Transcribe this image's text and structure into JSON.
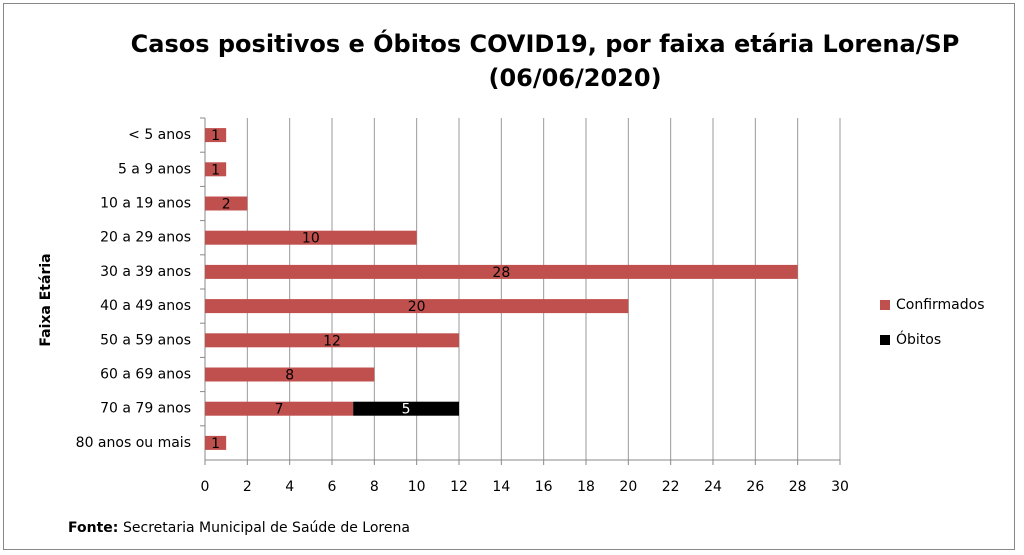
{
  "chart_data": {
    "type": "stacked-bar-horizontal",
    "title": [
      "Casos positivos e Óbitos COVID19, por faixa etária Lorena/SP",
      "(06/06/2020)"
    ],
    "ylabel": "Faixa Etária",
    "categories": [
      "< 5 anos",
      "5 a 9 anos",
      "10 a 19 anos",
      "20 a 29 anos",
      "30 a 39 anos",
      "40 a 49 anos",
      "50 a 59 anos",
      "60 a 69 anos",
      "70 a 79 anos",
      "80 anos ou mais"
    ],
    "series": [
      {
        "name": "Confirmados",
        "color": "#c0504d",
        "label_color": "#000000",
        "values": [
          1,
          1,
          2,
          10,
          28,
          20,
          12,
          8,
          7,
          1
        ]
      },
      {
        "name": "Óbitos",
        "color": "#000000",
        "label_color": "#ffffff",
        "values": [
          null,
          null,
          null,
          null,
          null,
          null,
          null,
          null,
          5,
          null
        ]
      }
    ],
    "xlim": [
      0,
      30
    ],
    "xticks": [
      0,
      2,
      4,
      6,
      8,
      10,
      12,
      14,
      16,
      18,
      20,
      22,
      24,
      26,
      28,
      30
    ],
    "grid": true,
    "legend": "right",
    "source": {
      "label": "Fonte:",
      "text": "Secretaria Municipal de Saúde de Lorena"
    }
  }
}
